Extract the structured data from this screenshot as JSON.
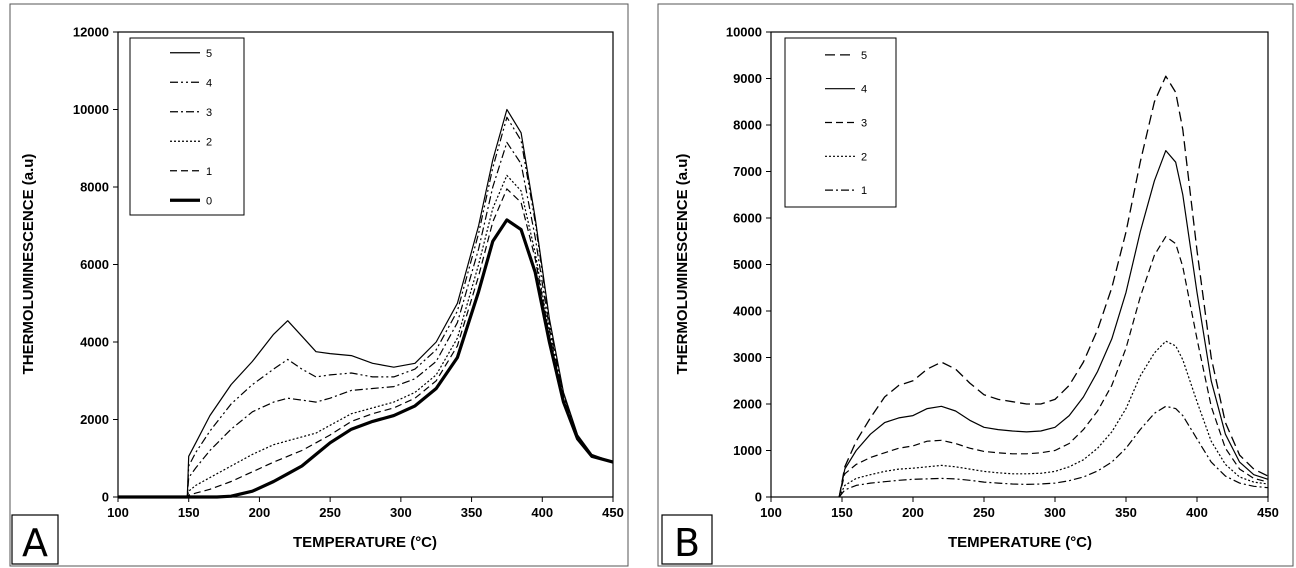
{
  "chart_data": [
    {
      "type": "line",
      "panel_label": "A",
      "xlabel": "TEMPERATURE (°C)",
      "ylabel": "THERMOLUMINESCENCE (a.u)",
      "xlim": [
        100,
        450
      ],
      "ylim": [
        0,
        12000
      ],
      "xticks": [
        100,
        150,
        200,
        250,
        300,
        350,
        400,
        450
      ],
      "yticks": [
        0,
        2000,
        4000,
        6000,
        8000,
        10000,
        12000
      ],
      "grid": false,
      "legend_position": "top-left",
      "series": [
        {
          "name": "5",
          "style": "solid",
          "x": [
            100,
            149,
            150,
            155,
            165,
            180,
            195,
            210,
            220,
            230,
            240,
            250,
            265,
            280,
            295,
            310,
            325,
            340,
            355,
            365,
            375,
            385,
            395,
            405,
            415,
            425,
            435,
            450
          ],
          "y": [
            0,
            0,
            1050,
            1400,
            2100,
            2900,
            3500,
            4200,
            4550,
            4150,
            3750,
            3700,
            3650,
            3450,
            3350,
            3450,
            4000,
            5000,
            7000,
            8700,
            10000,
            9400,
            7200,
            4600,
            2700,
            1600,
            1100,
            900
          ]
        },
        {
          "name": "4",
          "style": "dash-dot-dot",
          "x": [
            100,
            149,
            150,
            155,
            165,
            180,
            195,
            210,
            220,
            230,
            240,
            250,
            265,
            280,
            295,
            310,
            325,
            340,
            355,
            365,
            375,
            385,
            395,
            405,
            415,
            425,
            435,
            450
          ],
          "y": [
            0,
            0,
            800,
            1150,
            1700,
            2400,
            2900,
            3300,
            3550,
            3300,
            3100,
            3150,
            3200,
            3100,
            3100,
            3300,
            3800,
            4800,
            6800,
            8500,
            9800,
            9200,
            7100,
            4500,
            2650,
            1580,
            1080,
            900
          ]
        },
        {
          "name": "3",
          "style": "dash-dot",
          "x": [
            100,
            149,
            150,
            155,
            165,
            180,
            195,
            210,
            220,
            230,
            240,
            250,
            265,
            280,
            295,
            310,
            325,
            340,
            355,
            365,
            375,
            385,
            395,
            405,
            415,
            425,
            435,
            450
          ],
          "y": [
            0,
            0,
            500,
            750,
            1200,
            1750,
            2200,
            2450,
            2550,
            2500,
            2450,
            2550,
            2750,
            2800,
            2850,
            3050,
            3500,
            4500,
            6400,
            8000,
            9150,
            8600,
            6700,
            4350,
            2600,
            1560,
            1070,
            900
          ]
        },
        {
          "name": "2",
          "style": "dotted",
          "x": [
            100,
            149,
            150,
            155,
            165,
            180,
            195,
            210,
            220,
            230,
            240,
            250,
            265,
            280,
            295,
            310,
            325,
            340,
            355,
            365,
            375,
            385,
            395,
            405,
            415,
            425,
            435,
            450
          ],
          "y": [
            0,
            0,
            150,
            300,
            500,
            800,
            1100,
            1350,
            1450,
            1550,
            1650,
            1850,
            2150,
            2300,
            2450,
            2700,
            3150,
            4100,
            6000,
            7450,
            8300,
            7900,
            6300,
            4200,
            2550,
            1540,
            1060,
            900
          ]
        },
        {
          "name": "1",
          "style": "dashed",
          "x": [
            100,
            149,
            150,
            155,
            165,
            180,
            195,
            210,
            220,
            230,
            240,
            250,
            265,
            280,
            295,
            310,
            325,
            340,
            355,
            365,
            375,
            385,
            395,
            405,
            415,
            425,
            435,
            450
          ],
          "y": [
            0,
            0,
            50,
            100,
            200,
            400,
            650,
            900,
            1050,
            1200,
            1400,
            1600,
            1950,
            2150,
            2300,
            2550,
            3000,
            3900,
            5700,
            7100,
            7950,
            7600,
            6150,
            4150,
            2500,
            1520,
            1050,
            900
          ]
        },
        {
          "name": "0",
          "style": "thick",
          "x": [
            100,
            170,
            180,
            195,
            210,
            220,
            230,
            240,
            250,
            265,
            280,
            295,
            310,
            325,
            340,
            355,
            365,
            375,
            385,
            395,
            405,
            415,
            425,
            435,
            450
          ],
          "y": [
            0,
            0,
            20,
            150,
            400,
            600,
            800,
            1100,
            1400,
            1750,
            1950,
            2100,
            2350,
            2800,
            3600,
            5300,
            6600,
            7150,
            6900,
            5800,
            4000,
            2450,
            1500,
            1050,
            900
          ]
        }
      ]
    },
    {
      "type": "line",
      "panel_label": "B",
      "xlabel": "TEMPERATURE (°C)",
      "ylabel": "THERMOLUMINESCENCE (a.u)",
      "xlim": [
        100,
        450
      ],
      "ylim": [
        0,
        10000
      ],
      "xticks": [
        100,
        150,
        200,
        250,
        300,
        350,
        400,
        450
      ],
      "yticks": [
        0,
        1000,
        2000,
        3000,
        4000,
        5000,
        6000,
        7000,
        8000,
        9000,
        10000
      ],
      "grid": false,
      "legend_position": "top-left",
      "series": [
        {
          "name": "5",
          "style": "long-dash",
          "x": [
            148,
            152,
            160,
            170,
            180,
            190,
            200,
            210,
            220,
            230,
            240,
            250,
            260,
            270,
            280,
            290,
            300,
            310,
            320,
            330,
            340,
            350,
            360,
            370,
            378,
            385,
            390,
            400,
            410,
            420,
            430,
            440,
            450
          ],
          "y": [
            0,
            650,
            1200,
            1700,
            2150,
            2400,
            2500,
            2750,
            2900,
            2750,
            2450,
            2200,
            2100,
            2050,
            2000,
            2000,
            2100,
            2400,
            2900,
            3600,
            4500,
            5700,
            7200,
            8500,
            9050,
            8700,
            7900,
            5300,
            3000,
            1600,
            900,
            600,
            450
          ]
        },
        {
          "name": "4",
          "style": "solid",
          "x": [
            148,
            152,
            160,
            170,
            180,
            190,
            200,
            210,
            220,
            230,
            240,
            250,
            260,
            270,
            280,
            290,
            300,
            310,
            320,
            330,
            340,
            350,
            360,
            370,
            378,
            385,
            390,
            400,
            410,
            420,
            430,
            440,
            450
          ],
          "y": [
            0,
            600,
            1000,
            1350,
            1600,
            1700,
            1750,
            1900,
            1950,
            1850,
            1650,
            1500,
            1450,
            1420,
            1400,
            1420,
            1500,
            1750,
            2150,
            2700,
            3400,
            4400,
            5700,
            6800,
            7450,
            7200,
            6500,
            4400,
            2500,
            1350,
            750,
            480,
            380
          ]
        },
        {
          "name": "3",
          "style": "dashed",
          "x": [
            148,
            152,
            160,
            170,
            180,
            190,
            200,
            210,
            220,
            230,
            240,
            250,
            260,
            270,
            280,
            290,
            300,
            310,
            320,
            330,
            340,
            350,
            360,
            370,
            378,
            385,
            390,
            400,
            410,
            420,
            430,
            440,
            450
          ],
          "y": [
            0,
            500,
            700,
            850,
            950,
            1050,
            1100,
            1200,
            1220,
            1150,
            1050,
            980,
            950,
            930,
            930,
            950,
            1000,
            1150,
            1450,
            1850,
            2400,
            3200,
            4300,
            5200,
            5600,
            5450,
            4950,
            3400,
            1950,
            1050,
            600,
            400,
            320
          ]
        },
        {
          "name": "2",
          "style": "dotted",
          "x": [
            148,
            152,
            160,
            170,
            180,
            190,
            200,
            210,
            220,
            230,
            240,
            250,
            260,
            270,
            280,
            290,
            300,
            310,
            320,
            330,
            340,
            350,
            360,
            370,
            378,
            385,
            390,
            400,
            410,
            420,
            430,
            440,
            450
          ],
          "y": [
            0,
            250,
            400,
            480,
            550,
            600,
            620,
            650,
            680,
            650,
            600,
            550,
            520,
            500,
            500,
            510,
            550,
            650,
            800,
            1050,
            1400,
            1900,
            2600,
            3100,
            3350,
            3250,
            2950,
            2050,
            1200,
            700,
            430,
            320,
            280
          ]
        },
        {
          "name": "1",
          "style": "dash-dot",
          "x": [
            148,
            152,
            160,
            170,
            180,
            190,
            200,
            210,
            220,
            230,
            240,
            250,
            260,
            270,
            280,
            290,
            300,
            310,
            320,
            330,
            340,
            350,
            360,
            370,
            378,
            385,
            390,
            400,
            410,
            420,
            430,
            440,
            450
          ],
          "y": [
            0,
            150,
            250,
            300,
            330,
            360,
            380,
            390,
            400,
            390,
            360,
            320,
            300,
            280,
            270,
            280,
            300,
            350,
            430,
            560,
            750,
            1050,
            1450,
            1800,
            1950,
            1900,
            1750,
            1250,
            750,
            450,
            300,
            230,
            200
          ]
        }
      ]
    }
  ]
}
